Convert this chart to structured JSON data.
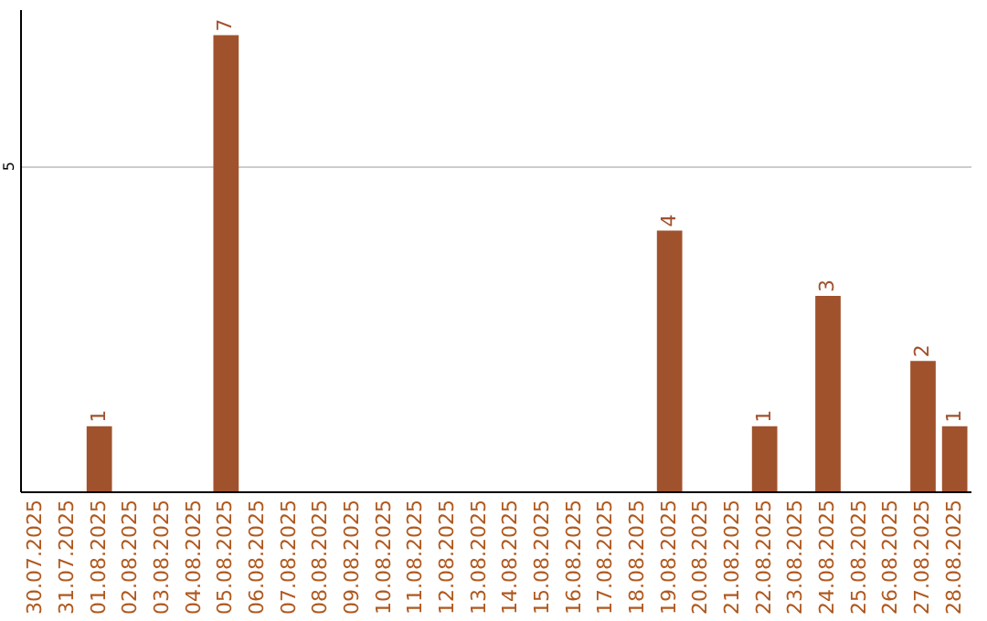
{
  "chart_data": {
    "type": "bar",
    "categories": [
      "30.07.2025",
      "31.07.2025",
      "01.08.2025",
      "02.08.2025",
      "03.08.2025",
      "04.08.2025",
      "05.08.2025",
      "06.08.2025",
      "07.08.2025",
      "08.08.2025",
      "09.08.2025",
      "10.08.2025",
      "11.08.2025",
      "12.08.2025",
      "13.08.2025",
      "14.08.2025",
      "15.08.2025",
      "16.08.2025",
      "17.08.2025",
      "18.08.2025",
      "19.08.2025",
      "20.08.2025",
      "21.08.2025",
      "22.08.2025",
      "23.08.2025",
      "24.08.2025",
      "25.08.2025",
      "26.08.2025",
      "27.08.2025",
      "28.08.2025"
    ],
    "values": [
      0,
      0,
      1,
      0,
      0,
      0,
      7,
      0,
      0,
      0,
      0,
      0,
      0,
      0,
      0,
      0,
      0,
      0,
      0,
      0,
      4,
      0,
      0,
      1,
      0,
      3,
      0,
      0,
      2,
      1
    ],
    "value_labels": [
      null,
      null,
      "1",
      null,
      null,
      null,
      "7",
      null,
      null,
      null,
      null,
      null,
      null,
      null,
      null,
      null,
      null,
      null,
      null,
      null,
      "4",
      null,
      null,
      "1",
      null,
      "3",
      null,
      null,
      "2",
      "1"
    ],
    "color": "#a0522d",
    "ylim": [
      0,
      7.4
    ],
    "yticks": [
      5
    ],
    "grid": "y"
  }
}
